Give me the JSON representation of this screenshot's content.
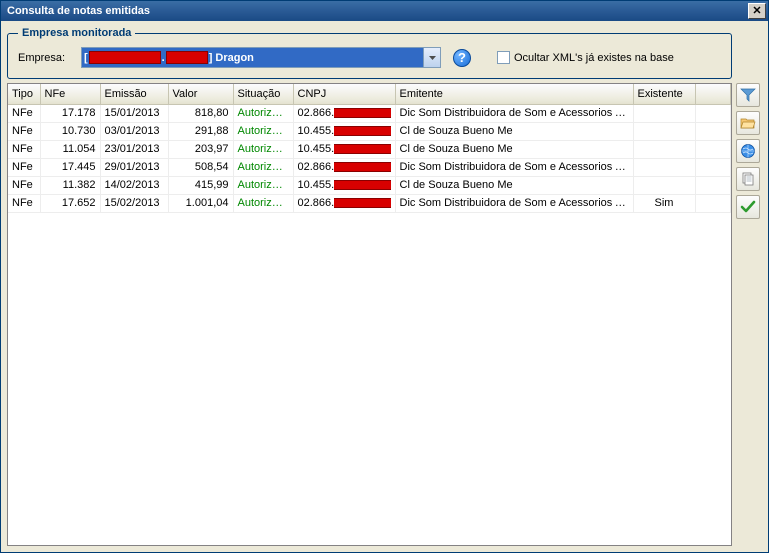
{
  "window": {
    "title": "Consulta de notas emitidas"
  },
  "empresa": {
    "legend": "Empresa monitorada",
    "label": "Empresa:",
    "combo_bracket_close": "]",
    "combo_text": "Dragon",
    "help_tooltip": "Ajuda",
    "checkbox_label": "Ocultar XML's já existes na base",
    "checkbox_checked": false
  },
  "grid": {
    "columns": {
      "tipo": "Tipo",
      "nfe": "NFe",
      "emissao": "Emissão",
      "valor": "Valor",
      "situacao": "Situação",
      "cnpj": "CNPJ",
      "emitente": "Emitente",
      "existente": "Existente"
    },
    "rows": [
      {
        "tipo": "NFe",
        "nfe": "17.178",
        "emissao": "15/01/2013",
        "valor": "818,80",
        "situacao": "Autorizada",
        "cnpj_prefix": "02.866.",
        "emitente": "Dic Som Distribuidora de Som e Acessorios Aut...",
        "existente": ""
      },
      {
        "tipo": "NFe",
        "nfe": "10.730",
        "emissao": "03/01/2013",
        "valor": "291,88",
        "situacao": "Autorizada",
        "cnpj_prefix": "10.455.",
        "emitente": "Cl de Souza Bueno Me",
        "existente": ""
      },
      {
        "tipo": "NFe",
        "nfe": "11.054",
        "emissao": "23/01/2013",
        "valor": "203,97",
        "situacao": "Autorizada",
        "cnpj_prefix": "10.455.",
        "emitente": "Cl de Souza Bueno Me",
        "existente": ""
      },
      {
        "tipo": "NFe",
        "nfe": "17.445",
        "emissao": "29/01/2013",
        "valor": "508,54",
        "situacao": "Autorizada",
        "cnpj_prefix": "02.866.",
        "emitente": "Dic Som Distribuidora de Som e Acessorios Aut...",
        "existente": ""
      },
      {
        "tipo": "NFe",
        "nfe": "11.382",
        "emissao": "14/02/2013",
        "valor": "415,99",
        "situacao": "Autorizada",
        "cnpj_prefix": "10.455.",
        "emitente": "Cl de Souza Bueno Me",
        "existente": ""
      },
      {
        "tipo": "NFe",
        "nfe": "17.652",
        "emissao": "15/02/2013",
        "valor": "1.001,04",
        "situacao": "Autorizada",
        "cnpj_prefix": "02.866.",
        "emitente": "Dic Som Distribuidora de Som e Acessorios Aut...",
        "existente": "Sim"
      }
    ]
  },
  "toolbar": {
    "filter": "Filtrar",
    "open": "Abrir",
    "info": "Informação",
    "copy": "Copiar",
    "confirm": "Confirmar"
  },
  "colors": {
    "titlebar": "#2a5a95",
    "accent": "#003c74",
    "authorized": "#008800",
    "redaction": "#d80000",
    "panel": "#ece9d8",
    "combo_highlight": "#316ac5"
  }
}
